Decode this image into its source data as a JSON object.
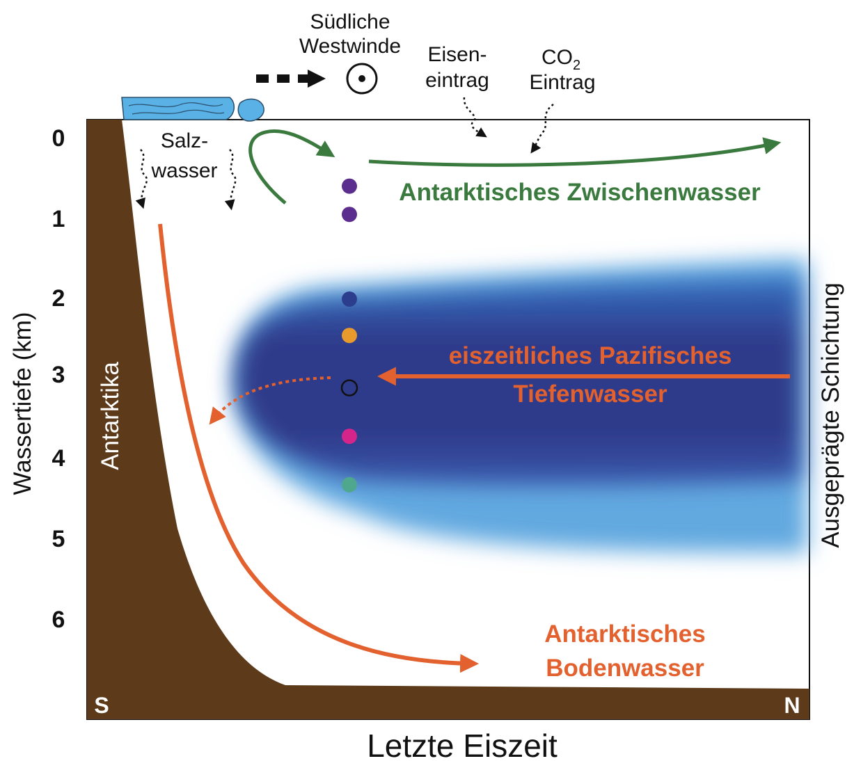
{
  "colors": {
    "land": "#5c3a1a",
    "ice": "#5ab1e6",
    "green": "#3a7a3e",
    "orange": "#e2612e",
    "deep_blue": "#2f3a8a",
    "light_blue": "#62a9e0",
    "arrow_black": "#111111"
  },
  "y_axis": {
    "label": "Wassertiefe (km)",
    "ticks": [
      "0",
      "1",
      "2",
      "3",
      "4",
      "5",
      "6"
    ]
  },
  "x_axis": {
    "label": "Letzte Eiszeit",
    "left_end": "S",
    "right_end": "N"
  },
  "right_label": "Ausgeprägte Schichtung",
  "landmass_label": "Antarktika",
  "top_labels": {
    "winds_line1": "Südliche",
    "winds_line2": "Westwinde",
    "iron_line1": "Eisen-",
    "iron_line2": "eintrag",
    "co2_main": "CO",
    "co2_sub": "2",
    "co2_line2": "Eintrag",
    "salt_line1": "Salz-",
    "salt_line2": "wasser"
  },
  "water_masses": {
    "intermediate": "Antarktisches Zwischenwasser",
    "pacific_line1": "eiszeitliches Pazifisches",
    "pacific_line2": "Tiefenwasser",
    "bottom_line1": "Antarktisches",
    "bottom_line2": "Bodenwasser"
  },
  "sample_points": [
    {
      "depth_km": 0.6,
      "color": "#5b2d8e",
      "filled": true
    },
    {
      "depth_km": 0.95,
      "color": "#5b2d8e",
      "filled": true
    },
    {
      "depth_km": 2.0,
      "color": "#2d3d8e",
      "filled": true
    },
    {
      "depth_km": 2.45,
      "color": "#e89a2c",
      "filled": true
    },
    {
      "depth_km": 3.1,
      "color": "#111111",
      "filled": false
    },
    {
      "depth_km": 3.7,
      "color": "#d6258a",
      "filled": true
    },
    {
      "depth_km": 4.3,
      "color": "#4fa88e",
      "filled": true
    }
  ]
}
